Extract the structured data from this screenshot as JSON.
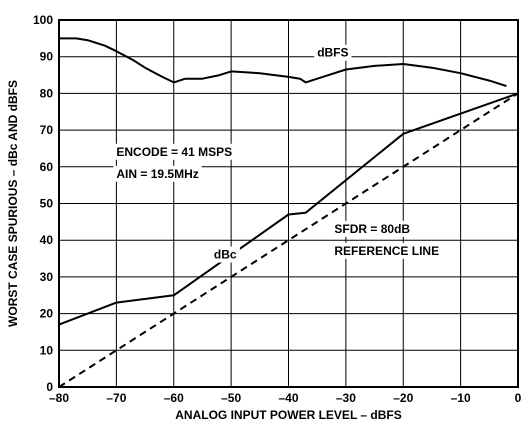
{
  "chart_data": {
    "type": "line",
    "title": "",
    "xlabel": "ANALOG INPUT POWER LEVEL – dBFS",
    "ylabel": "WORST CASE SPURIOUS – dBc AND dBFS",
    "xlim": [
      -80,
      0
    ],
    "ylim": [
      0,
      100
    ],
    "x_ticks": [
      -80,
      -70,
      -60,
      -50,
      -40,
      -30,
      -20,
      -10,
      0
    ],
    "x_tick_labels": [
      "–80",
      "–70",
      "–60",
      "–50",
      "–40",
      "–30",
      "–20",
      "–10",
      "0"
    ],
    "y_ticks": [
      0,
      10,
      20,
      30,
      40,
      50,
      60,
      70,
      80,
      90,
      100
    ],
    "y_tick_labels": [
      "0",
      "10",
      "20",
      "30",
      "40",
      "50",
      "60",
      "70",
      "80",
      "90",
      "100"
    ],
    "grid": true,
    "series": [
      {
        "name": "dBFS",
        "style": "solid",
        "x": [
          -80,
          -77,
          -75,
          -72,
          -70,
          -67,
          -65,
          -62,
          -60,
          -58,
          -57,
          -55,
          -52,
          -50,
          -45,
          -40,
          -38,
          -37,
          -35,
          -32,
          -30,
          -25,
          -20,
          -15,
          -10,
          -5,
          -2
        ],
        "y": [
          95,
          95,
          94.5,
          93,
          91.5,
          89,
          87,
          84.5,
          83,
          84,
          84,
          84,
          85,
          86,
          85.5,
          84.5,
          84,
          83,
          84,
          85.5,
          86.5,
          87.5,
          88,
          87,
          85.5,
          83.5,
          82
        ]
      },
      {
        "name": "dBc",
        "style": "solid",
        "x": [
          -80,
          -70,
          -60,
          -40,
          -37,
          -20,
          0
        ],
        "y": [
          17,
          23,
          25,
          47,
          47.5,
          69,
          80
        ]
      },
      {
        "name": "SFDR = 80dB REFERENCE LINE",
        "style": "dashed",
        "x": [
          -80,
          0
        ],
        "y": [
          0,
          80
        ]
      }
    ],
    "annotations": [
      {
        "text": "dBFS",
        "x": -35,
        "y": 90
      },
      {
        "text": "ENCODE = 41 MSPS",
        "x": -70,
        "y": 63
      },
      {
        "text": "AIN = 19.5MHz",
        "x": -70,
        "y": 57
      },
      {
        "text": "SFDR = 80dB",
        "x": -32,
        "y": 42
      },
      {
        "text": "REFERENCE LINE",
        "x": -32,
        "y": 36
      },
      {
        "text": "dBc",
        "x": -53,
        "y": 35
      }
    ],
    "colors": {
      "line": "#000000",
      "grid": "#000000",
      "background": "#ffffff"
    }
  }
}
